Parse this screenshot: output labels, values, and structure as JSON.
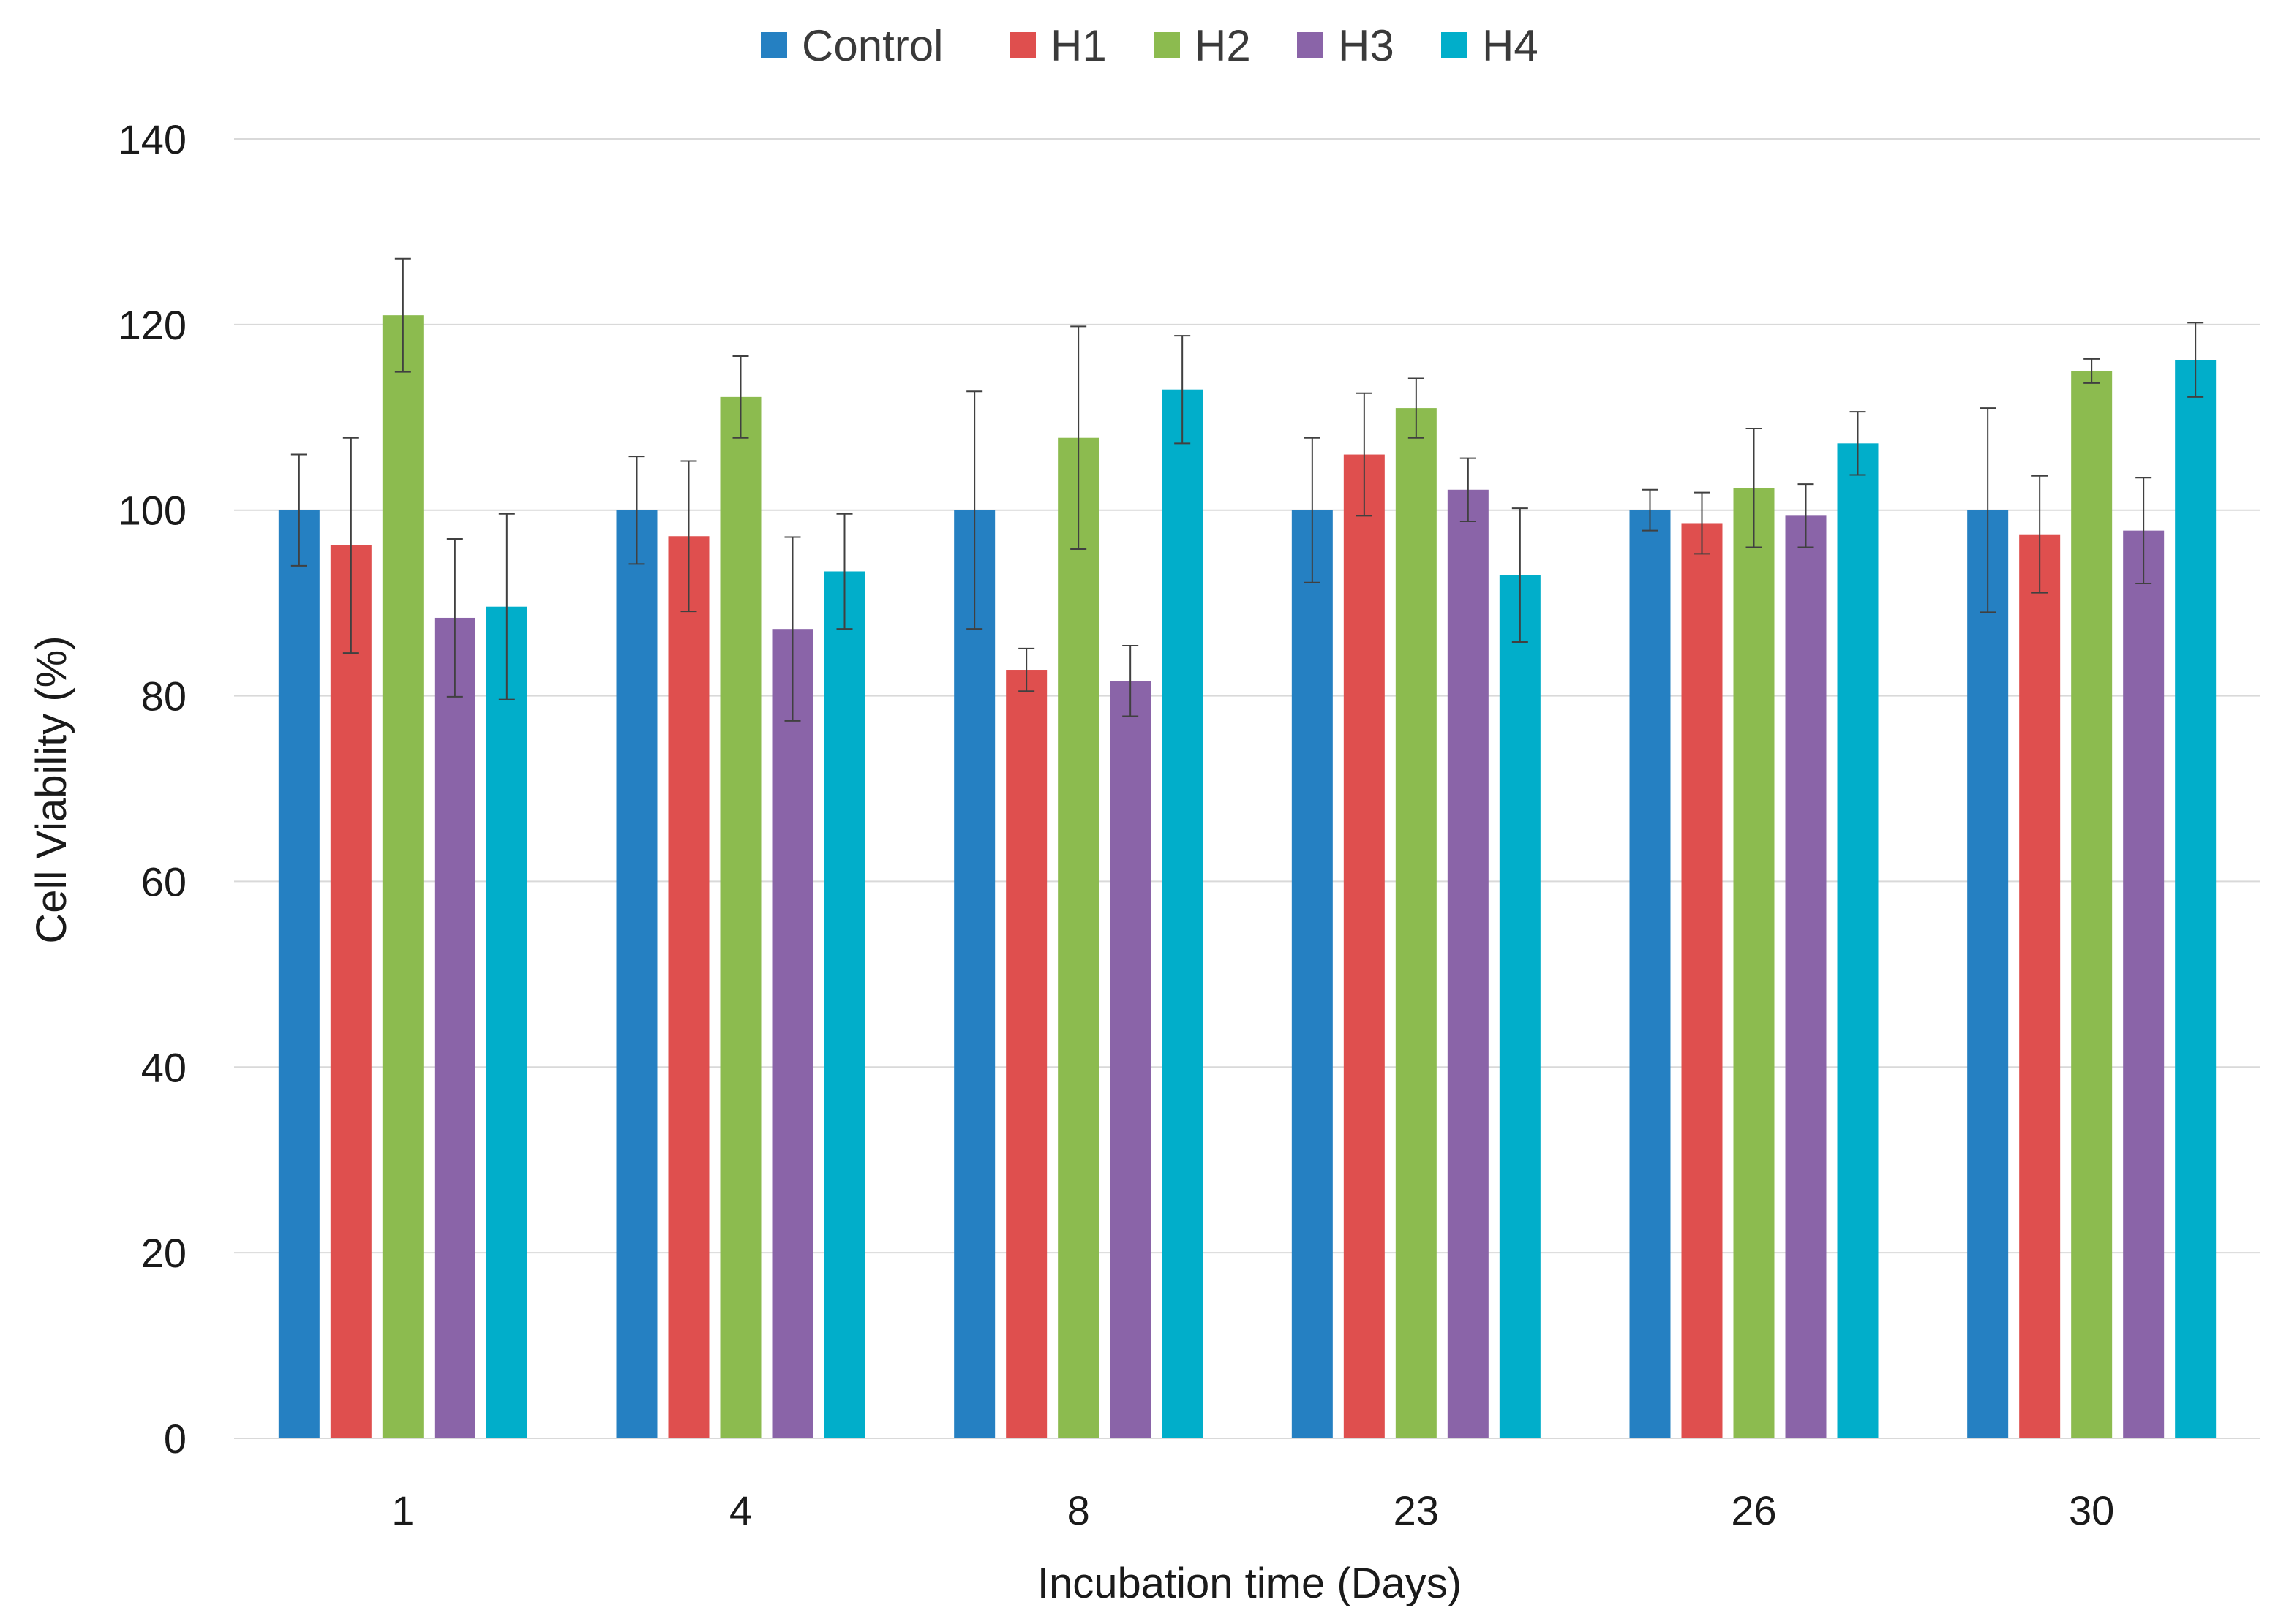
{
  "chart_data": {
    "type": "bar",
    "title": "",
    "xlabel": "Incubation time (Days)",
    "ylabel": "Cell Viability (%)",
    "categories": [
      "1",
      "4",
      "8",
      "23",
      "26",
      "30"
    ],
    "ylim": [
      0,
      140
    ],
    "yticks": [
      0,
      20,
      40,
      60,
      80,
      100,
      120,
      140
    ],
    "grid": true,
    "legend_position": "top",
    "series": [
      {
        "name": "Control",
        "color": "#2580C2",
        "values": [
          100,
          100,
          100,
          100,
          100,
          100
        ],
        "errors": [
          6,
          5.8,
          12.8,
          7.8,
          2.2,
          11
        ]
      },
      {
        "name": "H1",
        "color": "#DF4F4E",
        "values": [
          96.2,
          97.2,
          82.8,
          106,
          98.6,
          97.4
        ],
        "errors": [
          11.6,
          8.1,
          2.3,
          6.6,
          3.3,
          6.3
        ]
      },
      {
        "name": "H2",
        "color": "#8CBB4F",
        "values": [
          121,
          112.2,
          107.8,
          111,
          102.4,
          115
        ],
        "errors": [
          6.1,
          4.4,
          12,
          3.2,
          6.4,
          1.3
        ]
      },
      {
        "name": "H3",
        "color": "#8A64A8",
        "values": [
          88.4,
          87.2,
          81.6,
          102.2,
          99.4,
          97.8
        ],
        "errors": [
          8.5,
          9.9,
          3.8,
          3.4,
          3.4,
          5.7
        ]
      },
      {
        "name": "H4",
        "color": "#01AECA",
        "values": [
          89.6,
          93.4,
          113,
          93,
          107.2,
          116.2
        ],
        "errors": [
          10,
          6.2,
          5.8,
          7.2,
          3.4,
          4
        ]
      }
    ]
  }
}
